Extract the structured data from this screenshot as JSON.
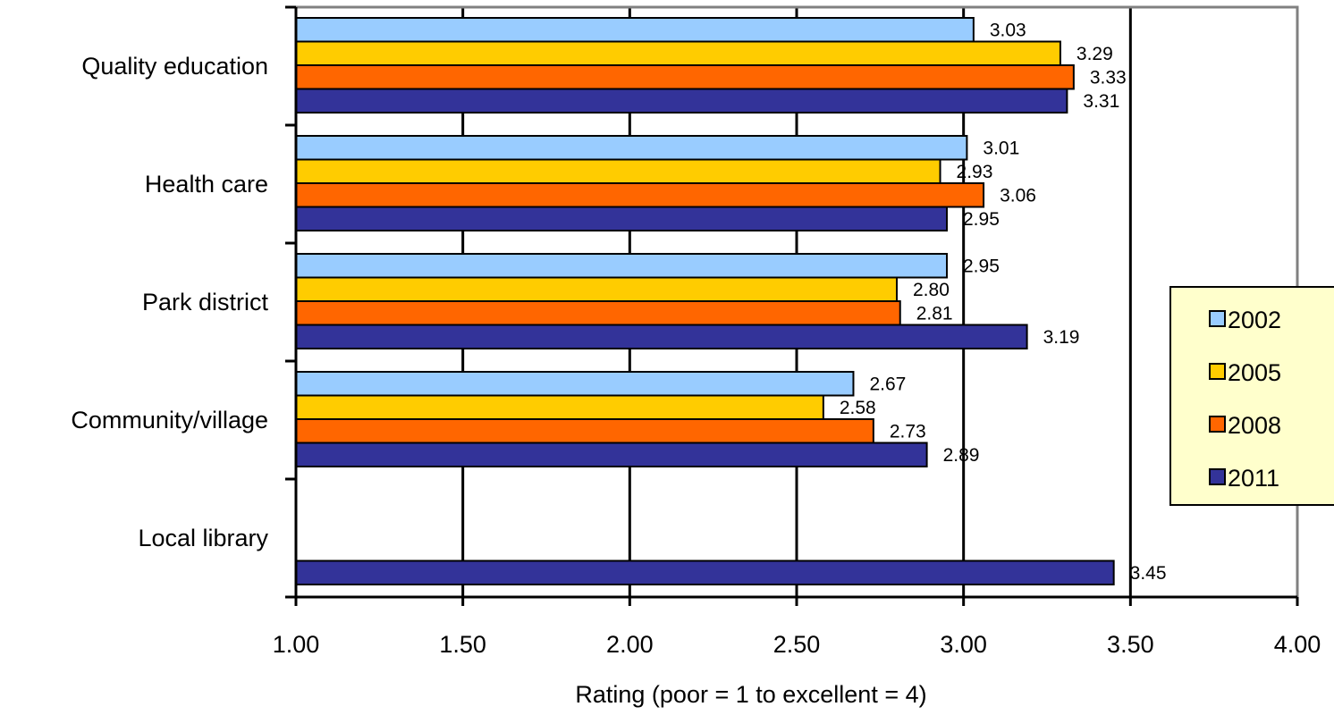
{
  "chart_data": {
    "type": "bar",
    "orientation": "horizontal",
    "categories": [
      "Quality education",
      "Health care",
      "Park district",
      "Community/village",
      "Local library"
    ],
    "series": [
      {
        "name": "2002",
        "color": "#99CCFF",
        "values": [
          3.03,
          3.01,
          2.95,
          2.67,
          null
        ],
        "labels": [
          "3.03",
          "3.01",
          "2.95",
          "2.67",
          null
        ]
      },
      {
        "name": "2005",
        "color": "#FFCC00",
        "values": [
          3.29,
          2.93,
          2.8,
          2.58,
          null
        ],
        "labels": [
          "3.29",
          "2.93",
          "2.80",
          "2.58",
          null
        ]
      },
      {
        "name": "2008",
        "color": "#FF6600",
        "values": [
          3.33,
          3.06,
          2.81,
          2.73,
          null
        ],
        "labels": [
          "3.33",
          "3.06",
          "2.81",
          "2.73",
          null
        ]
      },
      {
        "name": "2011",
        "color": "#333399",
        "values": [
          3.31,
          2.95,
          3.19,
          2.89,
          3.45
        ],
        "labels": [
          "3.31",
          "2.95",
          "3.19",
          "2.89",
          "3.45"
        ]
      }
    ],
    "xlim": [
      1.0,
      4.0
    ],
    "xticks": [
      1.0,
      1.5,
      2.0,
      2.5,
      3.0,
      3.5,
      4.0
    ],
    "xtick_labels": [
      "1.00",
      "1.50",
      "2.00",
      "2.50",
      "3.00",
      "3.50",
      "4.00"
    ],
    "xlabel": "Rating (poor = 1 to excellent = 4)",
    "ylabel": "",
    "title": "",
    "grid": "vertical",
    "legend": {
      "placement": "right",
      "background": "#FFFFCC"
    }
  }
}
